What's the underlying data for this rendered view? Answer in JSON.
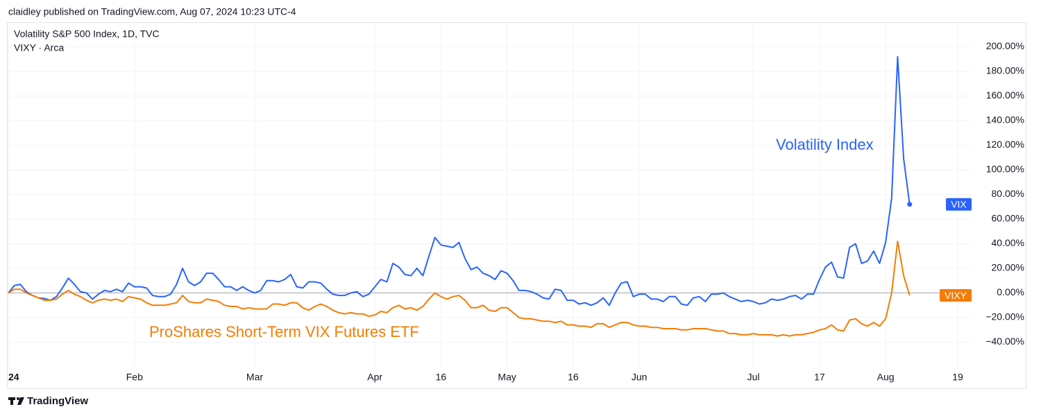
{
  "header": "claidley published on TradingView.com, Aug 07, 2024 10:23 UTC-4",
  "footer": "TradingView",
  "chart_data": {
    "type": "line",
    "grid": true,
    "categories": [
      "24",
      null,
      null,
      null,
      null,
      null,
      null,
      null,
      null,
      null,
      null,
      null,
      null,
      null,
      null,
      null,
      null,
      null,
      null,
      null,
      null,
      "Feb",
      null,
      null,
      null,
      null,
      null,
      null,
      null,
      null,
      null,
      null,
      null,
      null,
      null,
      null,
      null,
      null,
      null,
      null,
      null,
      "Mar",
      null,
      null,
      null,
      null,
      null,
      null,
      null,
      null,
      null,
      null,
      null,
      null,
      null,
      null,
      null,
      null,
      null,
      null,
      null,
      "Apr",
      null,
      null,
      null,
      null,
      null,
      null,
      null,
      null,
      null,
      null,
      "16",
      null,
      null,
      null,
      null,
      null,
      null,
      null,
      null,
      null,
      null,
      "May",
      null,
      null,
      null,
      null,
      null,
      null,
      null,
      null,
      null,
      null,
      "16",
      null,
      null,
      null,
      null,
      null,
      null,
      null,
      null,
      null,
      null,
      "Jun",
      null,
      null,
      null,
      null,
      null,
      null,
      null,
      null,
      null,
      null,
      null,
      null,
      null,
      null,
      null,
      null,
      null,
      null,
      "Jul",
      null,
      null,
      null,
      null,
      null,
      null,
      null,
      null,
      null,
      null,
      "17",
      null,
      null,
      null,
      null,
      null,
      null,
      null,
      null,
      null,
      null,
      "Aug",
      null,
      null,
      null,
      null,
      null,
      null,
      null,
      null,
      null,
      null,
      null,
      "19"
    ],
    "ylim": [
      -60,
      220
    ],
    "yticks": [
      {
        "value": -40,
        "label": "−40.00%"
      },
      {
        "value": -20,
        "label": "−20.00%"
      },
      {
        "value": 0,
        "label": "0.00%"
      },
      {
        "value": 20,
        "label": "20.00%"
      },
      {
        "value": 40,
        "label": "40.00%"
      },
      {
        "value": 60,
        "label": "60.00%"
      },
      {
        "value": 80,
        "label": "80.00%"
      },
      {
        "value": 100,
        "label": "100.00%"
      },
      {
        "value": 120,
        "label": "120.00%"
      },
      {
        "value": 140,
        "label": "140.00%"
      },
      {
        "value": 160,
        "label": "160.00%"
      },
      {
        "value": 180,
        "label": "180.00%"
      },
      {
        "value": 200,
        "label": "200.00%"
      }
    ],
    "series": [
      {
        "name": "VIX",
        "legend": "Volatility S&P 500 Index, 1D, TVC",
        "annotation": "Volatility Index",
        "color": "#2962ff",
        "values": [
          0,
          6,
          7,
          1,
          -2,
          -4,
          -4.5,
          -6,
          -3,
          4,
          12,
          7,
          1,
          0,
          -5,
          -1,
          2,
          1,
          3,
          1,
          8,
          5,
          5,
          4,
          -2,
          -3,
          -3,
          -1,
          7,
          20,
          9,
          6,
          9,
          16,
          16,
          11,
          5,
          5,
          2,
          5,
          2,
          0,
          2,
          10,
          10,
          9,
          11,
          15,
          5,
          4,
          9,
          9,
          8,
          3,
          -1,
          -2,
          -2,
          0,
          1,
          -3,
          -1,
          5,
          11,
          9,
          24,
          21,
          15,
          14,
          20,
          14,
          30,
          45,
          39,
          38,
          37,
          41,
          28,
          19,
          21,
          16,
          14,
          11,
          18,
          16,
          10,
          2,
          2,
          1,
          -1,
          -4,
          -5,
          3,
          2,
          -6,
          -6,
          -9,
          -8,
          -10,
          -8,
          -4,
          -10,
          0,
          8,
          9,
          -3,
          -1,
          -1,
          -5,
          -5,
          -7,
          -3,
          -3,
          -9,
          -10,
          -4,
          -3,
          -7,
          -1,
          -1,
          0,
          -3,
          -5,
          -7,
          -6,
          -7,
          -9,
          -8,
          -5,
          -6,
          -5,
          -3,
          -2,
          -5,
          -1,
          -1,
          11,
          21,
          25,
          13,
          12,
          37,
          40,
          24,
          26,
          34,
          24,
          41,
          77,
          192,
          109,
          72,
          null,
          null,
          null,
          null,
          null,
          null,
          null,
          null
        ]
      },
      {
        "name": "VIXY",
        "legend": "VIXY · Arca",
        "annotation": "ProShares Short-Term VIX Futures ETF",
        "color": "#f57c00",
        "values": [
          0,
          3,
          3,
          0,
          -2,
          -4,
          -6,
          -6,
          -5,
          -1,
          2,
          -1,
          -3,
          -6,
          -8,
          -6,
          -5,
          -6,
          -5,
          -7,
          -3,
          -4,
          -5,
          -8,
          -10,
          -10,
          -10,
          -9,
          -8,
          -2,
          -7,
          -8,
          -8,
          -5,
          -6,
          -7,
          -10,
          -11,
          -11,
          -13,
          -12,
          -13,
          -13,
          -13,
          -9,
          -9,
          -10,
          -8,
          -8,
          -12,
          -14,
          -11,
          -9,
          -11,
          -14,
          -16,
          -17,
          -16,
          -17,
          -17,
          -19,
          -18,
          -15,
          -16,
          -12,
          -10,
          -13,
          -12,
          -14,
          -11,
          -5,
          0,
          -3,
          -5,
          -3,
          -2,
          -6,
          -12,
          -12,
          -10,
          -14,
          -15,
          -12,
          -12,
          -16,
          -20,
          -21,
          -21,
          -22,
          -23,
          -23,
          -24,
          -23,
          -26,
          -26,
          -27,
          -27,
          -28,
          -25,
          -25,
          -28,
          -26,
          -24,
          -24,
          -26,
          -27,
          -27,
          -28,
          -28,
          -29,
          -29,
          -29,
          -30,
          -30,
          -29,
          -29,
          -29,
          -30,
          -31,
          -31,
          -33,
          -33,
          -34,
          -34,
          -33,
          -34,
          -34,
          -34,
          -35,
          -34,
          -35,
          -34,
          -34,
          -33,
          -32,
          -30,
          -29,
          -26,
          -30,
          -31,
          -22,
          -21,
          -25,
          -27,
          -24,
          -27,
          -21,
          0,
          42,
          14,
          -2,
          null,
          null,
          null,
          null,
          null,
          null,
          null,
          null
        ]
      }
    ]
  }
}
